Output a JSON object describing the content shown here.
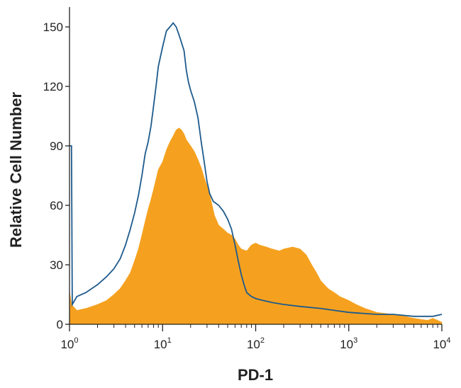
{
  "chart_data": {
    "type": "area",
    "title": "",
    "xlabel": "PD-1",
    "ylabel": "Relative Cell Number",
    "xscale": "log",
    "xlim": [
      1,
      10000
    ],
    "ylim": [
      0,
      160
    ],
    "grid": false,
    "legend": "none",
    "x_ticks": [
      {
        "base": "10",
        "exp": "0",
        "value": 1
      },
      {
        "base": "10",
        "exp": "1",
        "value": 10
      },
      {
        "base": "10",
        "exp": "2",
        "value": 100
      },
      {
        "base": "10",
        "exp": "3",
        "value": 1000
      },
      {
        "base": "10",
        "exp": "4",
        "value": 10000
      }
    ],
    "y_ticks": [
      "0",
      "30",
      "60",
      "90",
      "120",
      "150"
    ],
    "series": [
      {
        "style": "filled",
        "color": "#F5A11F",
        "points": [
          [
            1,
            17
          ],
          [
            1.05,
            10
          ],
          [
            1.2,
            7
          ],
          [
            1.5,
            8
          ],
          [
            2,
            10
          ],
          [
            2.5,
            12
          ],
          [
            3,
            15
          ],
          [
            3.5,
            18
          ],
          [
            4,
            22
          ],
          [
            4.5,
            26
          ],
          [
            5,
            32
          ],
          [
            5.5,
            38
          ],
          [
            6,
            45
          ],
          [
            6.5,
            52
          ],
          [
            7,
            58
          ],
          [
            7.5,
            63
          ],
          [
            8,
            68
          ],
          [
            9,
            78
          ],
          [
            10,
            82
          ],
          [
            11,
            88
          ],
          [
            12,
            92
          ],
          [
            13,
            95
          ],
          [
            14,
            98
          ],
          [
            15,
            99
          ],
          [
            16,
            98
          ],
          [
            17,
            96
          ],
          [
            18,
            93
          ],
          [
            20,
            90
          ],
          [
            22,
            87
          ],
          [
            24,
            83
          ],
          [
            26,
            79
          ],
          [
            28,
            74
          ],
          [
            30,
            70
          ],
          [
            33,
            63
          ],
          [
            36,
            55
          ],
          [
            40,
            50
          ],
          [
            45,
            48
          ],
          [
            50,
            46
          ],
          [
            55,
            45
          ],
          [
            60,
            43
          ],
          [
            65,
            40
          ],
          [
            70,
            38
          ],
          [
            80,
            37
          ],
          [
            90,
            40
          ],
          [
            100,
            41
          ],
          [
            110,
            40
          ],
          [
            130,
            39
          ],
          [
            150,
            38
          ],
          [
            180,
            37
          ],
          [
            200,
            38
          ],
          [
            250,
            39
          ],
          [
            300,
            38
          ],
          [
            350,
            35
          ],
          [
            400,
            30
          ],
          [
            450,
            26
          ],
          [
            500,
            22
          ],
          [
            600,
            18
          ],
          [
            700,
            16
          ],
          [
            800,
            14
          ],
          [
            1000,
            12
          ],
          [
            1200,
            10
          ],
          [
            1500,
            8
          ],
          [
            2000,
            6
          ],
          [
            3000,
            5
          ],
          [
            4000,
            4
          ],
          [
            5000,
            3
          ],
          [
            7000,
            2
          ],
          [
            8000,
            3
          ],
          [
            9000,
            2
          ],
          [
            10000,
            1
          ]
        ]
      },
      {
        "style": "outline",
        "color": "#1E5A8C",
        "points": [
          [
            1,
            90
          ],
          [
            1.05,
            90
          ],
          [
            1.07,
            10
          ],
          [
            1.2,
            14
          ],
          [
            1.5,
            16
          ],
          [
            2,
            20
          ],
          [
            2.5,
            24
          ],
          [
            3,
            28
          ],
          [
            3.5,
            33
          ],
          [
            4,
            40
          ],
          [
            4.5,
            48
          ],
          [
            5,
            56
          ],
          [
            5.5,
            65
          ],
          [
            6,
            75
          ],
          [
            6.5,
            86
          ],
          [
            7,
            92
          ],
          [
            7.5,
            100
          ],
          [
            8,
            110
          ],
          [
            8.5,
            120
          ],
          [
            9,
            130
          ],
          [
            10,
            140
          ],
          [
            11,
            148
          ],
          [
            12,
            150
          ],
          [
            13,
            152
          ],
          [
            14,
            150
          ],
          [
            15,
            146
          ],
          [
            16,
            142
          ],
          [
            17,
            138
          ],
          [
            18,
            128
          ],
          [
            19,
            122
          ],
          [
            20,
            118
          ],
          [
            22,
            112
          ],
          [
            24,
            104
          ],
          [
            26,
            92
          ],
          [
            28,
            82
          ],
          [
            30,
            72
          ],
          [
            32,
            66
          ],
          [
            35,
            62
          ],
          [
            40,
            60
          ],
          [
            45,
            57
          ],
          [
            50,
            53
          ],
          [
            55,
            48
          ],
          [
            60,
            40
          ],
          [
            65,
            32
          ],
          [
            70,
            25
          ],
          [
            75,
            20
          ],
          [
            80,
            16
          ],
          [
            90,
            14
          ],
          [
            100,
            13
          ],
          [
            120,
            12
          ],
          [
            150,
            11
          ],
          [
            200,
            10
          ],
          [
            300,
            9
          ],
          [
            500,
            8
          ],
          [
            700,
            7
          ],
          [
            1000,
            6
          ],
          [
            2000,
            5
          ],
          [
            3000,
            5
          ],
          [
            5000,
            4
          ],
          [
            8000,
            4
          ],
          [
            10000,
            5
          ]
        ]
      }
    ]
  }
}
